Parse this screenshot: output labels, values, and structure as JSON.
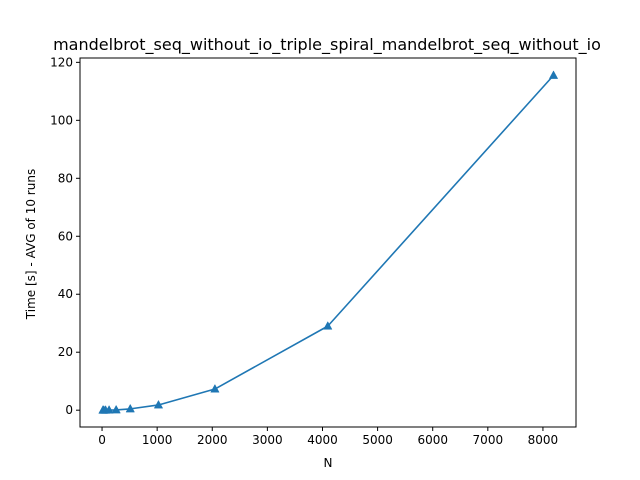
{
  "chart_data": {
    "type": "line",
    "title": "mandelbrot_seq_without_io_triple_spiral_mandelbrot_seq_without_io",
    "xlabel": "N",
    "ylabel": "Time [s] - AVG of 10 runs",
    "xlim": [
      -400,
      8600
    ],
    "ylim": [
      -5.8,
      121.5
    ],
    "x_ticks": [
      0,
      1000,
      2000,
      3000,
      4000,
      5000,
      6000,
      7000,
      8000
    ],
    "y_ticks": [
      0,
      20,
      40,
      60,
      80,
      100,
      120
    ],
    "grid": false,
    "marker": "triangle-up",
    "series": [
      {
        "color": "#1f77b4",
        "x": [
          16,
          32,
          64,
          128,
          256,
          512,
          1024,
          2048,
          4096,
          8192
        ],
        "y": [
          0.0,
          0.0,
          0.0,
          0.03,
          0.1,
          0.45,
          1.8,
          7.3,
          29.0,
          115.5
        ]
      }
    ]
  }
}
